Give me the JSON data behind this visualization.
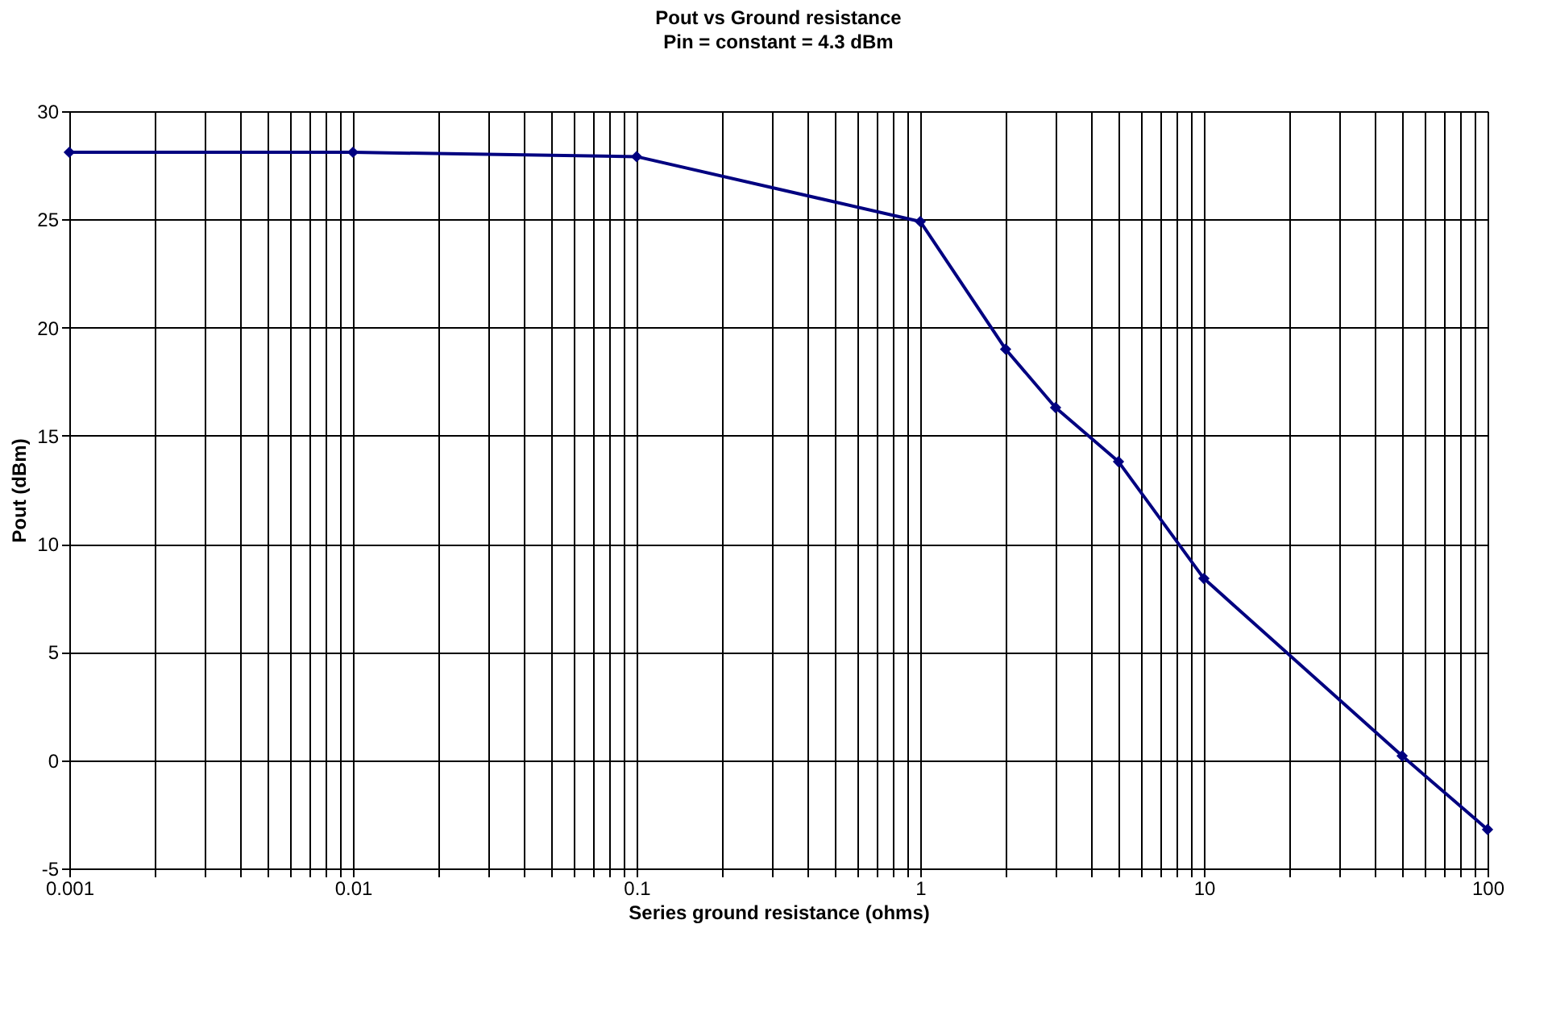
{
  "chart_data": {
    "type": "line",
    "title": "Pout vs Ground resistance",
    "subtitle": "Pin = constant = 4.3 dBm",
    "xlabel": "Series ground resistance (ohms)",
    "ylabel": "Pout (dBm)",
    "x": [
      0.001,
      0.01,
      0.1,
      1,
      2,
      3,
      5,
      10,
      50,
      100
    ],
    "series": [
      {
        "color": "#000080",
        "values": [
          28.1,
          28.1,
          27.9,
          24.9,
          19.0,
          16.3,
          13.8,
          8.4,
          0.2,
          -3.2
        ]
      }
    ],
    "log": "x",
    "xlim": [
      0.001,
      100
    ],
    "ylim": [
      -5,
      30
    ],
    "xticks": [
      0.001,
      {
        "value": 0.002,
        "label": null
      },
      {
        "value": 0.003,
        "label": null
      },
      {
        "value": 0.004,
        "label": null
      },
      {
        "value": 0.005,
        "label": null
      },
      {
        "value": 0.006,
        "label": null
      },
      {
        "value": 0.007,
        "label": null
      },
      {
        "value": 0.008,
        "label": null
      },
      {
        "value": 0.009,
        "label": null
      },
      0.01,
      {
        "value": 0.02,
        "label": null
      },
      {
        "value": 0.03,
        "label": null
      },
      {
        "value": 0.04,
        "label": null
      },
      {
        "value": 0.05,
        "label": null
      },
      {
        "value": 0.06,
        "label": null
      },
      {
        "value": 0.07,
        "label": null
      },
      {
        "value": 0.08,
        "label": null
      },
      {
        "value": 0.09,
        "label": null
      },
      0.1,
      {
        "value": 0.2,
        "label": null
      },
      {
        "value": 0.3,
        "label": null
      },
      {
        "value": 0.4,
        "label": null
      },
      {
        "value": 0.5,
        "label": null
      },
      {
        "value": 0.6,
        "label": null
      },
      {
        "value": 0.7,
        "label": null
      },
      {
        "value": 0.8,
        "label": null
      },
      {
        "value": 0.9,
        "label": null
      },
      1,
      {
        "value": 2,
        "label": null
      },
      {
        "value": 3,
        "label": null
      },
      {
        "value": 4,
        "label": null
      },
      {
        "value": 5,
        "label": null
      },
      {
        "value": 6,
        "label": null
      },
      {
        "value": 7,
        "label": null
      },
      {
        "value": 8,
        "label": null
      },
      {
        "value": 9,
        "label": null
      },
      10,
      {
        "value": 20,
        "label": null
      },
      {
        "value": 30,
        "label": null
      },
      {
        "value": 40,
        "label": null
      },
      {
        "value": 50,
        "label": null
      },
      {
        "value": 60,
        "label": null
      },
      {
        "value": 70,
        "label": null
      },
      {
        "value": 80,
        "label": null
      },
      {
        "value": 90,
        "label": null
      },
      100
    ],
    "yticks": [
      -5,
      0,
      5,
      10,
      15,
      20,
      25,
      30
    ],
    "grid": true,
    "marker": "diamond",
    "line_style": "solid"
  }
}
